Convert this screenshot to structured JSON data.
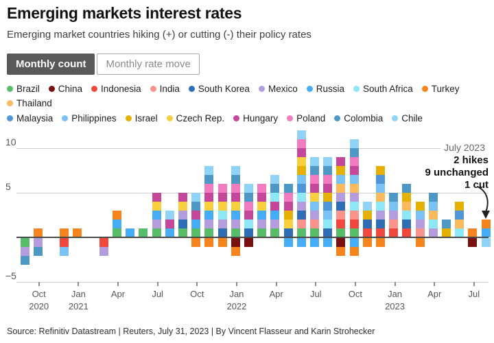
{
  "title": "Emerging markets interest rates",
  "subtitle": "Emerging market countries hiking (+) or cutting (-) their policy rates",
  "toggle": {
    "active_label": "Monthly count",
    "inactive_label": "Monthly rate move"
  },
  "colors": {
    "Brazil": "#58BD68",
    "China": "#7A1111",
    "Indonesia": "#F0483C",
    "India": "#F9938C",
    "South Korea": "#2F6EB5",
    "Mexico": "#B39DDC",
    "Russia": "#45ACF5",
    "South Africa": "#8DE7F5",
    "Turkey": "#F5841F",
    "Thailand": "#FBBA5D",
    "Malaysia": "#4F96D8",
    "Philippines": "#7AC1F4",
    "Israel": "#E6B000",
    "Czech Rep.": "#F7CF3F",
    "Hungary": "#C4479A",
    "Poland": "#F27CBF",
    "Colombia": "#4E98C6",
    "Chile": "#8FD4F6"
  },
  "legend": {
    "row1": [
      "Brazil",
      "China",
      "Indonesia",
      "India",
      "South Korea",
      "Mexico",
      "Russia",
      "South Africa",
      "Turkey",
      "Thailand"
    ],
    "row2": [
      "Malaysia",
      "Philippines",
      "Israel",
      "Czech Rep.",
      "Hungary",
      "Poland",
      "Colombia",
      "Chile"
    ]
  },
  "annotation": {
    "title": "July 2023",
    "lines": [
      "2 hikes",
      "9 unchanged",
      "1 cut"
    ]
  },
  "source": "Source: Refinitiv Datastream | Reuters, July 31, 2023 | By Vincent Flasseur and Karin Strohecker",
  "chart_data": {
    "type": "bar",
    "stacked": true,
    "unit": "1 segment = 1 country changing its policy rate that month (above 0 = hike, below 0 = cut)",
    "ylim": [
      -5,
      12
    ],
    "grid": "horizontal",
    "y_axis": {
      "ticks": [
        {
          "value": 10,
          "label": "10"
        },
        {
          "value": 5,
          "label": "5"
        },
        {
          "value": -5,
          "label": "−5"
        }
      ],
      "zero_line": true
    },
    "x_axis": {
      "ticks": [
        {
          "label": "Oct",
          "year": "2020"
        },
        {
          "label": "Jan",
          "year": "2021"
        },
        {
          "label": "Apr"
        },
        {
          "label": "Jul"
        },
        {
          "label": "Oct"
        },
        {
          "label": "Jan",
          "year": "2022"
        },
        {
          "label": "Apr"
        },
        {
          "label": "Jul"
        },
        {
          "label": "Oct"
        },
        {
          "label": "Jan",
          "year": "2023"
        },
        {
          "label": "Apr"
        },
        {
          "label": "Jul"
        }
      ]
    },
    "months": [
      {
        "month": "Aug 2020",
        "hikes": [],
        "cuts": [
          "Brazil",
          "Mexico",
          "Colombia"
        ]
      },
      {
        "month": "Sep 2020",
        "hikes": [
          "Turkey"
        ],
        "cuts": [
          "Mexico",
          "Colombia"
        ]
      },
      {
        "month": "Oct 2020",
        "hikes": [],
        "cuts": []
      },
      {
        "month": "Nov 2020",
        "hikes": [
          "Turkey"
        ],
        "cuts": [
          "Indonesia",
          "Philippines"
        ]
      },
      {
        "month": "Dec 2020",
        "hikes": [
          "Turkey"
        ],
        "cuts": []
      },
      {
        "month": "Jan 2021",
        "hikes": [],
        "cuts": []
      },
      {
        "month": "Feb 2021",
        "hikes": [],
        "cuts": [
          "Indonesia",
          "Mexico"
        ]
      },
      {
        "month": "Mar 2021",
        "hikes": [
          "Brazil",
          "Russia",
          "Turkey"
        ],
        "cuts": []
      },
      {
        "month": "Apr 2021",
        "hikes": [
          "Russia"
        ],
        "cuts": []
      },
      {
        "month": "May 2021",
        "hikes": [
          "Brazil"
        ],
        "cuts": []
      },
      {
        "month": "Jun 2021",
        "hikes": [
          "Brazil",
          "Mexico",
          "Russia",
          "Czech Rep.",
          "Hungary"
        ],
        "cuts": []
      },
      {
        "month": "Jul 2021",
        "hikes": [
          "Russia",
          "Hungary",
          "Chile"
        ],
        "cuts": []
      },
      {
        "month": "Aug 2021",
        "hikes": [
          "Brazil",
          "South Korea",
          "Mexico",
          "Czech Rep.",
          "Hungary"
        ],
        "cuts": []
      },
      {
        "month": "Sep 2021",
        "hikes": [
          "Brazil",
          "Russia",
          "Hungary",
          "Colombia",
          "Chile"
        ],
        "cuts": [
          "Turkey"
        ]
      },
      {
        "month": "Oct 2021",
        "hikes": [
          "Brazil",
          "Mexico",
          "Russia",
          "Czech Rep.",
          "Hungary",
          "Poland",
          "Colombia",
          "Chile"
        ],
        "cuts": [
          "Turkey"
        ]
      },
      {
        "month": "Nov 2021",
        "hikes": [
          "South Korea",
          "Mexico",
          "South Africa",
          "Czech Rep.",
          "Hungary",
          "Poland"
        ],
        "cuts": [
          "Turkey"
        ]
      },
      {
        "month": "Dec 2021",
        "hikes": [
          "Brazil",
          "Mexico",
          "Russia",
          "Czech Rep.",
          "Hungary",
          "Poland",
          "Colombia",
          "Chile"
        ],
        "cuts": [
          "China",
          "Turkey"
        ]
      },
      {
        "month": "Jan 2022",
        "hikes": [
          "South Korea",
          "South Africa",
          "Hungary",
          "Poland",
          "Colombia",
          "Chile"
        ],
        "cuts": [
          "China"
        ]
      },
      {
        "month": "Feb 2022",
        "hikes": [
          "Brazil",
          "Mexico",
          "Russia",
          "Czech Rep.",
          "Hungary",
          "Poland"
        ],
        "cuts": []
      },
      {
        "month": "Mar 2022",
        "hikes": [
          "Brazil",
          "Mexico",
          "Russia",
          "Hungary",
          "South Africa",
          "Colombia",
          "Chile"
        ],
        "cuts": []
      },
      {
        "month": "Apr 2022",
        "hikes": [
          "South Korea",
          "Czech Rep.",
          "Israel",
          "Hungary",
          "Poland",
          "Colombia"
        ],
        "cuts": [
          "Russia"
        ]
      },
      {
        "month": "May 2022",
        "hikes": [
          "Brazil",
          "India",
          "South Korea",
          "Mexico",
          "South Africa",
          "Malaysia",
          "Philippines",
          "Israel",
          "Czech Rep.",
          "Hungary",
          "Poland",
          "Chile"
        ],
        "cuts": [
          "Russia"
        ]
      },
      {
        "month": "Jun 2022",
        "hikes": [
          "Brazil",
          "India",
          "Mexico",
          "Philippines",
          "Czech Rep.",
          "Hungary",
          "Poland",
          "Colombia",
          "Chile"
        ],
        "cuts": [
          "Russia"
        ]
      },
      {
        "month": "Jul 2022",
        "hikes": [
          "South Korea",
          "South Africa",
          "Philippines",
          "Malaysia",
          "Israel",
          "Hungary",
          "Poland",
          "Colombia",
          "Chile"
        ],
        "cuts": [
          "Russia"
        ]
      },
      {
        "month": "Aug 2022",
        "hikes": [
          "Brazil",
          "Indonesia",
          "India",
          "South Korea",
          "Mexico",
          "Thailand",
          "Philippines",
          "Israel",
          "Hungary"
        ],
        "cuts": [
          "China",
          "Turkey"
        ]
      },
      {
        "month": "Sep 2022",
        "hikes": [
          "Brazil",
          "Indonesia",
          "India",
          "South Africa",
          "Mexico",
          "Thailand",
          "Philippines",
          "Hungary",
          "Poland",
          "Colombia",
          "Chile"
        ],
        "cuts": [
          "Russia",
          "Turkey"
        ]
      },
      {
        "month": "Oct 2022",
        "hikes": [
          "Indonesia",
          "South Korea",
          "Israel",
          "Chile"
        ],
        "cuts": [
          "Turkey"
        ]
      },
      {
        "month": "Nov 2022",
        "hikes": [
          "Indonesia",
          "South Korea",
          "Mexico",
          "South Africa",
          "Thailand",
          "Philippines",
          "Malaysia",
          "Israel"
        ],
        "cuts": [
          "Turkey"
        ]
      },
      {
        "month": "Dec 2022",
        "hikes": [
          "Indonesia",
          "India",
          "Mexico",
          "Philippines",
          "Colombia"
        ],
        "cuts": []
      },
      {
        "month": "Jan 2023",
        "hikes": [
          "Indonesia",
          "South Korea",
          "South Africa",
          "Thailand",
          "Israel",
          "Colombia"
        ],
        "cuts": []
      },
      {
        "month": "Feb 2023",
        "hikes": [
          "India",
          "Mexico",
          "Philippines",
          "Israel"
        ],
        "cuts": [
          "Turkey"
        ]
      },
      {
        "month": "Mar 2023",
        "hikes": [
          "Mexico",
          "South Africa",
          "Thailand",
          "Philippines",
          "Colombia"
        ],
        "cuts": []
      },
      {
        "month": "Apr 2023",
        "hikes": [
          "Israel",
          "Colombia"
        ],
        "cuts": []
      },
      {
        "month": "May 2023",
        "hikes": [
          "South Africa",
          "Thailand",
          "Malaysia",
          "Israel"
        ],
        "cuts": []
      },
      {
        "month": "Jun 2023",
        "hikes": [
          "Turkey"
        ],
        "cuts": [
          "China"
        ]
      },
      {
        "month": "Jul 2023",
        "hikes": [
          "Russia",
          "Turkey"
        ],
        "cuts": [
          "Chile"
        ]
      }
    ]
  }
}
